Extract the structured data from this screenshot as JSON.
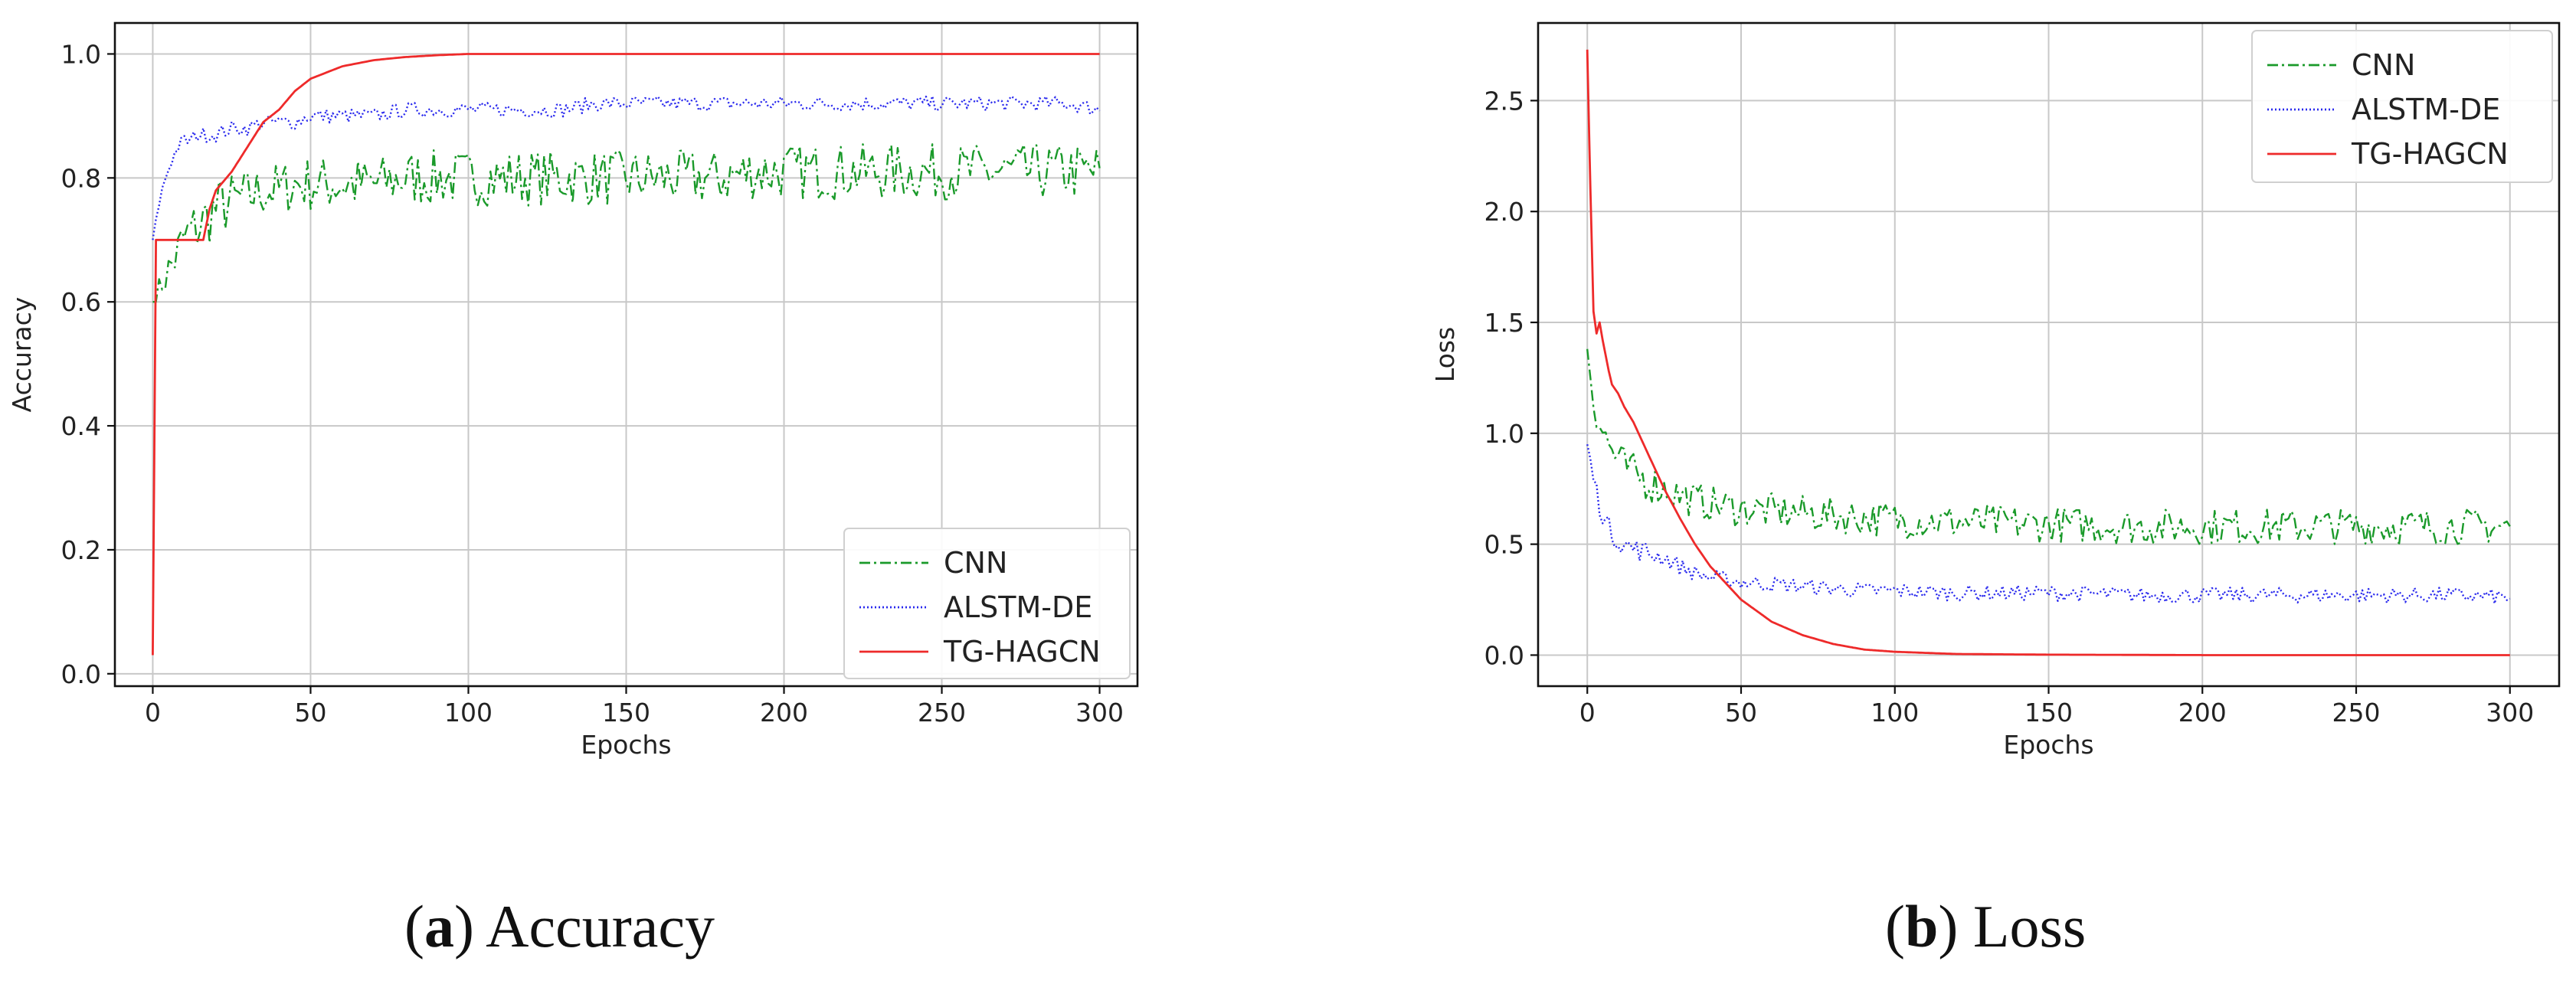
{
  "chart_data": [
    {
      "type": "line",
      "title": "",
      "xlabel": "Epochs",
      "ylabel": "Accuracy",
      "xlim": [
        -12,
        312
      ],
      "ylim": [
        -0.02,
        1.05
      ],
      "xticks": [
        0,
        50,
        100,
        150,
        200,
        250,
        300
      ],
      "xtick_labels": [
        "0",
        "50",
        "100",
        "150",
        "200",
        "250",
        "300"
      ],
      "yticks": [
        0.0,
        0.2,
        0.4,
        0.6,
        0.8,
        1.0
      ],
      "ytick_labels": [
        "0.0",
        "0.2",
        "0.4",
        "0.6",
        "0.8",
        "1.0"
      ],
      "grid": true,
      "legend_position": "lower-right",
      "caption_letter": "a",
      "caption_text": " Accuracy",
      "series": [
        {
          "name": "CNN",
          "color": "#1a9a2a",
          "style": "dashdot",
          "x": [
            0,
            2,
            4,
            6,
            8,
            10,
            12,
            14,
            16,
            18,
            20,
            25,
            30,
            35,
            40,
            45,
            50,
            60,
            70,
            80,
            90,
            100,
            110,
            120,
            130,
            140,
            150,
            160,
            170,
            180,
            190,
            200,
            210,
            220,
            230,
            240,
            250,
            260,
            270,
            280,
            290,
            300
          ],
          "y": [
            0.6,
            0.62,
            0.64,
            0.66,
            0.68,
            0.7,
            0.71,
            0.72,
            0.73,
            0.74,
            0.75,
            0.76,
            0.77,
            0.78,
            0.78,
            0.79,
            0.79,
            0.79,
            0.79,
            0.8,
            0.8,
            0.8,
            0.8,
            0.8,
            0.8,
            0.8,
            0.8,
            0.8,
            0.8,
            0.8,
            0.81,
            0.81,
            0.81,
            0.81,
            0.81,
            0.81,
            0.81,
            0.81,
            0.81,
            0.81,
            0.81,
            0.81
          ],
          "noise": [
            0.0,
            0.02,
            0.03,
            0.04,
            0.045,
            0.05,
            0.05,
            0.05,
            0.05,
            0.05,
            0.05,
            0.05,
            0.045,
            0.045,
            0.045,
            0.045,
            0.045,
            0.045,
            0.045,
            0.045,
            0.045,
            0.045,
            0.045,
            0.045,
            0.045,
            0.045,
            0.045,
            0.045,
            0.045,
            0.045,
            0.045,
            0.045,
            0.045,
            0.045,
            0.045,
            0.045,
            0.045,
            0.045,
            0.045,
            0.045,
            0.045,
            0.045
          ]
        },
        {
          "name": "ALSTM-DE",
          "color": "#2a2aee",
          "style": "dotted",
          "x": [
            0,
            2,
            4,
            6,
            8,
            10,
            12,
            14,
            16,
            18,
            20,
            25,
            30,
            35,
            40,
            45,
            50,
            60,
            70,
            80,
            90,
            100,
            110,
            120,
            130,
            140,
            150,
            160,
            170,
            180,
            190,
            200,
            210,
            220,
            230,
            240,
            250,
            260,
            270,
            280,
            290,
            300
          ],
          "y": [
            0.7,
            0.76,
            0.8,
            0.83,
            0.85,
            0.86,
            0.86,
            0.87,
            0.87,
            0.87,
            0.87,
            0.88,
            0.88,
            0.89,
            0.89,
            0.89,
            0.9,
            0.9,
            0.9,
            0.91,
            0.91,
            0.91,
            0.91,
            0.91,
            0.91,
            0.92,
            0.92,
            0.92,
            0.92,
            0.92,
            0.92,
            0.92,
            0.92,
            0.92,
            0.92,
            0.92,
            0.92,
            0.92,
            0.92,
            0.92,
            0.92,
            0.91
          ],
          "noise": [
            0.0,
            0.01,
            0.012,
            0.012,
            0.012,
            0.012,
            0.012,
            0.012,
            0.012,
            0.012,
            0.012,
            0.012,
            0.012,
            0.012,
            0.012,
            0.012,
            0.012,
            0.012,
            0.012,
            0.012,
            0.012,
            0.012,
            0.012,
            0.012,
            0.012,
            0.012,
            0.012,
            0.012,
            0.012,
            0.012,
            0.012,
            0.012,
            0.012,
            0.012,
            0.012,
            0.012,
            0.012,
            0.012,
            0.012,
            0.012,
            0.012,
            0.012
          ]
        },
        {
          "name": "TG-HAGCN",
          "color": "#ee2a2a",
          "style": "solid",
          "x": [
            0,
            1,
            2,
            4,
            8,
            12,
            16,
            18,
            20,
            25,
            30,
            35,
            40,
            45,
            50,
            60,
            70,
            80,
            90,
            100,
            120,
            150,
            200,
            250,
            300
          ],
          "y": [
            0.03,
            0.7,
            0.7,
            0.7,
            0.7,
            0.7,
            0.7,
            0.75,
            0.78,
            0.81,
            0.85,
            0.89,
            0.91,
            0.94,
            0.96,
            0.98,
            0.99,
            0.995,
            0.998,
            1.0,
            1.0,
            1.0,
            1.0,
            1.0,
            1.0
          ],
          "noise": [
            0,
            0,
            0,
            0,
            0,
            0,
            0,
            0,
            0,
            0,
            0,
            0,
            0,
            0,
            0,
            0,
            0,
            0,
            0,
            0,
            0,
            0,
            0,
            0,
            0
          ]
        }
      ]
    },
    {
      "type": "line",
      "title": "",
      "xlabel": "Epochs",
      "ylabel": "Loss",
      "xlim": [
        -16,
        316
      ],
      "ylim": [
        -0.14,
        2.85
      ],
      "xticks": [
        0,
        50,
        100,
        150,
        200,
        250,
        300
      ],
      "xtick_labels": [
        "0",
        "50",
        "100",
        "150",
        "200",
        "250",
        "300"
      ],
      "yticks": [
        0.0,
        0.5,
        1.0,
        1.5,
        2.0,
        2.5
      ],
      "ytick_labels": [
        "0.0",
        "0.5",
        "1.0",
        "1.5",
        "2.0",
        "2.5"
      ],
      "grid": true,
      "legend_position": "upper-right",
      "caption_letter": "b",
      "caption_text": " Loss",
      "series": [
        {
          "name": "CNN",
          "color": "#1a9a2a",
          "style": "dashdot",
          "x": [
            0,
            2,
            4,
            6,
            8,
            10,
            12,
            15,
            20,
            25,
            30,
            35,
            40,
            50,
            60,
            70,
            80,
            90,
            100,
            120,
            150,
            180,
            200,
            220,
            250,
            280,
            300
          ],
          "y": [
            1.38,
            1.15,
            1.05,
            0.98,
            0.92,
            0.88,
            0.85,
            0.82,
            0.78,
            0.75,
            0.72,
            0.7,
            0.68,
            0.66,
            0.65,
            0.64,
            0.63,
            0.62,
            0.61,
            0.6,
            0.59,
            0.58,
            0.58,
            0.58,
            0.58,
            0.58,
            0.58
          ],
          "noise": [
            0,
            0.08,
            0.09,
            0.09,
            0.09,
            0.09,
            0.09,
            0.09,
            0.09,
            0.08,
            0.08,
            0.08,
            0.08,
            0.08,
            0.08,
            0.08,
            0.08,
            0.08,
            0.08,
            0.08,
            0.08,
            0.08,
            0.08,
            0.08,
            0.08,
            0.08,
            0.08
          ]
        },
        {
          "name": "ALSTM-DE",
          "color": "#2a2aee",
          "style": "dotted",
          "x": [
            0,
            2,
            4,
            6,
            8,
            10,
            12,
            15,
            20,
            25,
            30,
            35,
            40,
            50,
            60,
            70,
            80,
            90,
            100,
            120,
            150,
            180,
            200,
            220,
            250,
            280,
            300
          ],
          "y": [
            0.95,
            0.8,
            0.68,
            0.6,
            0.55,
            0.52,
            0.5,
            0.48,
            0.46,
            0.44,
            0.4,
            0.37,
            0.35,
            0.33,
            0.32,
            0.31,
            0.3,
            0.29,
            0.29,
            0.28,
            0.28,
            0.27,
            0.27,
            0.27,
            0.27,
            0.27,
            0.26
          ],
          "noise": [
            0,
            0.04,
            0.05,
            0.05,
            0.05,
            0.05,
            0.05,
            0.05,
            0.05,
            0.04,
            0.04,
            0.035,
            0.035,
            0.035,
            0.035,
            0.035,
            0.035,
            0.035,
            0.035,
            0.035,
            0.035,
            0.035,
            0.035,
            0.035,
            0.035,
            0.035,
            0.035
          ]
        },
        {
          "name": "TG-HAGCN",
          "color": "#ee2a2a",
          "style": "solid",
          "x": [
            0,
            1,
            2,
            3,
            4,
            5,
            6,
            7,
            8,
            10,
            12,
            15,
            20,
            25,
            30,
            35,
            40,
            50,
            60,
            70,
            80,
            90,
            100,
            120,
            150,
            200,
            250,
            300
          ],
          "y": [
            2.73,
            2.1,
            1.55,
            1.45,
            1.5,
            1.42,
            1.35,
            1.28,
            1.22,
            1.18,
            1.12,
            1.05,
            0.9,
            0.75,
            0.62,
            0.5,
            0.4,
            0.25,
            0.15,
            0.09,
            0.05,
            0.025,
            0.015,
            0.005,
            0.002,
            0.0,
            0.0,
            0.0
          ],
          "noise": [
            0,
            0,
            0,
            0,
            0,
            0,
            0,
            0,
            0,
            0,
            0,
            0,
            0,
            0,
            0,
            0,
            0,
            0,
            0,
            0,
            0,
            0,
            0,
            0,
            0,
            0,
            0,
            0
          ]
        }
      ]
    }
  ]
}
